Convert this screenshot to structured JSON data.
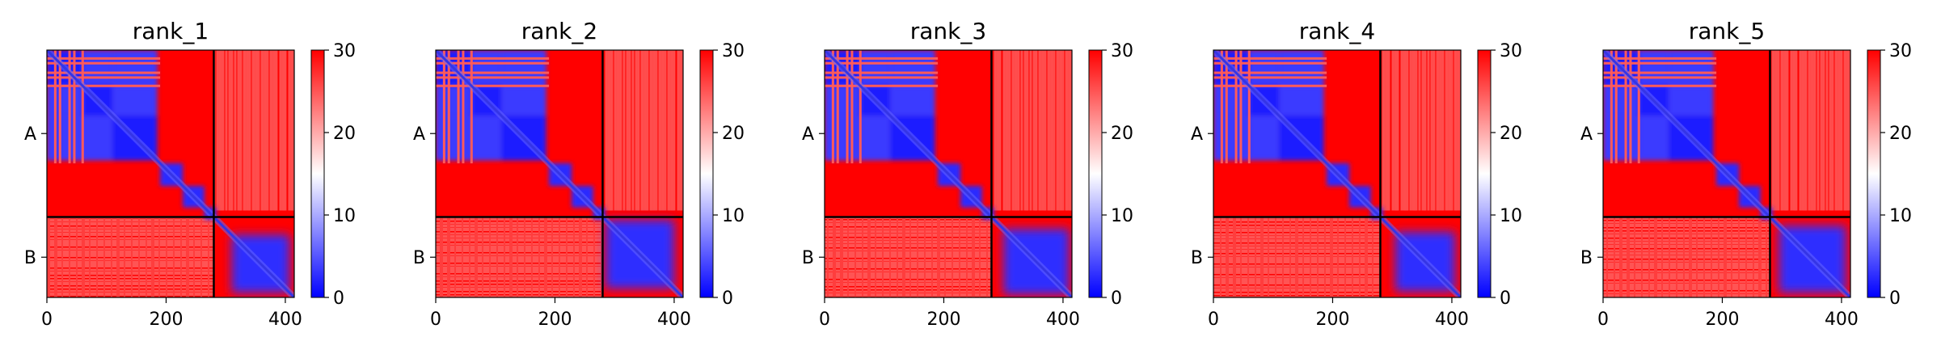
{
  "chart_data": [
    {
      "type": "heatmap",
      "title": "rank_1",
      "chains": [
        "A",
        "B"
      ],
      "chain_lengths": [
        280,
        135
      ],
      "chain_boundary": 280,
      "xlim": [
        0,
        415
      ],
      "x_ticks": [
        "0",
        "200",
        "400"
      ],
      "x_tick_values": [
        0,
        200,
        400
      ],
      "y_tick_labels": [
        "A",
        "B"
      ],
      "colorbar": {
        "range": [
          0,
          30
        ],
        "ticks": [
          "0",
          "10",
          "20",
          "30"
        ],
        "tick_values": [
          0,
          10,
          20,
          30
        ],
        "colors": [
          "#0000ff",
          "#ffffff",
          "#ff0000"
        ]
      },
      "blue_blocks": [
        [
          12,
          90
        ],
        [
          94,
          122
        ],
        [
          132,
          190
        ],
        [
          190,
          228
        ],
        [
          228,
          264
        ],
        [
          264,
          284
        ]
      ],
      "a_segments": [
        [
          0,
          60
        ],
        [
          60,
          110
        ],
        [
          110,
          185
        ]
      ],
      "b_variant": 0
    },
    {
      "type": "heatmap",
      "title": "rank_2",
      "chains": [
        "A",
        "B"
      ],
      "chain_lengths": [
        280,
        135
      ],
      "chain_boundary": 280,
      "xlim": [
        0,
        415
      ],
      "x_ticks": [
        "0",
        "200",
        "400"
      ],
      "x_tick_values": [
        0,
        200,
        400
      ],
      "y_tick_labels": [
        "A",
        "B"
      ],
      "colorbar": {
        "range": [
          0,
          30
        ],
        "ticks": [
          "0",
          "10",
          "20",
          "30"
        ],
        "tick_values": [
          0,
          10,
          20,
          30
        ],
        "colors": [
          "#0000ff",
          "#ffffff",
          "#ff0000"
        ]
      },
      "blue_blocks": [
        [
          12,
          90
        ],
        [
          94,
          122
        ],
        [
          132,
          190
        ],
        [
          190,
          228
        ],
        [
          228,
          264
        ],
        [
          264,
          284
        ]
      ],
      "a_segments": [
        [
          0,
          60
        ],
        [
          60,
          110
        ],
        [
          110,
          185
        ]
      ],
      "b_variant": 1
    },
    {
      "type": "heatmap",
      "title": "rank_3",
      "chains": [
        "A",
        "B"
      ],
      "chain_lengths": [
        280,
        135
      ],
      "chain_boundary": 280,
      "xlim": [
        0,
        415
      ],
      "x_ticks": [
        "0",
        "200",
        "400"
      ],
      "x_tick_values": [
        0,
        200,
        400
      ],
      "y_tick_labels": [
        "A",
        "B"
      ],
      "colorbar": {
        "range": [
          0,
          30
        ],
        "ticks": [
          "0",
          "10",
          "20",
          "30"
        ],
        "tick_values": [
          0,
          10,
          20,
          30
        ],
        "colors": [
          "#0000ff",
          "#ffffff",
          "#ff0000"
        ]
      },
      "blue_blocks": [
        [
          12,
          90
        ],
        [
          94,
          122
        ],
        [
          132,
          190
        ],
        [
          190,
          228
        ],
        [
          228,
          264
        ],
        [
          264,
          284
        ]
      ],
      "a_segments": [
        [
          0,
          60
        ],
        [
          60,
          110
        ],
        [
          110,
          185
        ]
      ],
      "b_variant": 2
    },
    {
      "type": "heatmap",
      "title": "rank_4",
      "chains": [
        "A",
        "B"
      ],
      "chain_lengths": [
        280,
        135
      ],
      "chain_boundary": 280,
      "xlim": [
        0,
        415
      ],
      "x_ticks": [
        "0",
        "200",
        "400"
      ],
      "x_tick_values": [
        0,
        200,
        400
      ],
      "y_tick_labels": [
        "A",
        "B"
      ],
      "colorbar": {
        "range": [
          0,
          30
        ],
        "ticks": [
          "0",
          "10",
          "20",
          "30"
        ],
        "tick_values": [
          0,
          10,
          20,
          30
        ],
        "colors": [
          "#0000ff",
          "#ffffff",
          "#ff0000"
        ]
      },
      "blue_blocks": [
        [
          12,
          90
        ],
        [
          94,
          122
        ],
        [
          132,
          190
        ],
        [
          190,
          228
        ],
        [
          228,
          264
        ],
        [
          264,
          284
        ]
      ],
      "a_segments": [
        [
          0,
          60
        ],
        [
          60,
          110
        ],
        [
          110,
          185
        ]
      ],
      "b_variant": 3
    },
    {
      "type": "heatmap",
      "title": "rank_5",
      "chains": [
        "A",
        "B"
      ],
      "chain_lengths": [
        280,
        135
      ],
      "chain_boundary": 280,
      "xlim": [
        0,
        415
      ],
      "x_ticks": [
        "0",
        "200",
        "400"
      ],
      "x_tick_values": [
        0,
        200,
        400
      ],
      "y_tick_labels": [
        "A",
        "B"
      ],
      "colorbar": {
        "range": [
          0,
          30
        ],
        "ticks": [
          "0",
          "10",
          "20",
          "30"
        ],
        "tick_values": [
          0,
          10,
          20,
          30
        ],
        "colors": [
          "#0000ff",
          "#ffffff",
          "#ff0000"
        ]
      },
      "blue_blocks": [
        [
          12,
          90
        ],
        [
          94,
          122
        ],
        [
          132,
          190
        ],
        [
          190,
          228
        ],
        [
          228,
          264
        ],
        [
          264,
          284
        ]
      ],
      "a_segments": [
        [
          0,
          60
        ],
        [
          60,
          110
        ],
        [
          110,
          185
        ]
      ],
      "b_variant": 4
    }
  ]
}
